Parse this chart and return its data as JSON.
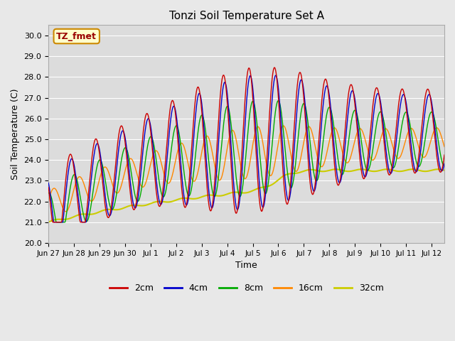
{
  "title": "Tonzi Soil Temperature Set A",
  "xlabel": "Time",
  "ylabel": "Soil Temperature (C)",
  "annotation": "TZ_fmet",
  "ylim": [
    20.0,
    30.5
  ],
  "yticks": [
    20.0,
    21.0,
    22.0,
    23.0,
    24.0,
    25.0,
    26.0,
    27.0,
    28.0,
    29.0,
    30.0
  ],
  "xtick_labels": [
    "Jun 27",
    "Jun 28",
    "Jun 29",
    "Jun 30",
    "Jul 1",
    "Jul 2",
    "Jul 3",
    "Jul 4",
    "Jul 5",
    "Jul 6",
    "Jul 7",
    "Jul 8",
    "Jul 9",
    "Jul 10",
    "Jul 11",
    "Jul 12"
  ],
  "colors": {
    "2cm": "#cc0000",
    "4cm": "#0000cc",
    "8cm": "#00aa00",
    "16cm": "#ff8800",
    "32cm": "#cccc00"
  },
  "bg_color": "#e8e8e8",
  "plot_bg_color": "#dcdcdc",
  "annotation_bg": "#ffffcc",
  "annotation_border": "#cc8800"
}
